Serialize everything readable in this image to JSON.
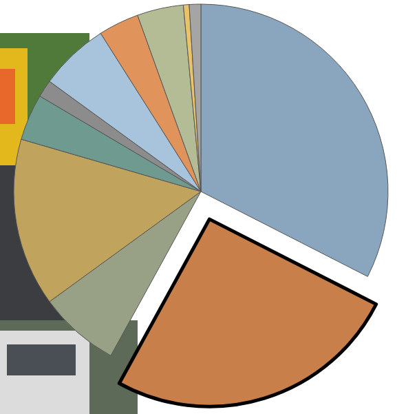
{
  "chart_data": {
    "type": "pie",
    "values": [
      32.5,
      25.5,
      7,
      14.5,
      4,
      1.5,
      6,
      3.5,
      4,
      0.5,
      1
    ],
    "colors": [
      "#8aa6bf",
      "#c87f4a",
      "#98a086",
      "#c0a35d",
      "#6f9a90",
      "#8c8c8c",
      "#a7c4dc",
      "#e0935a",
      "#b4bc95",
      "#e8c36a",
      "#a5a5a5"
    ]
  }
}
